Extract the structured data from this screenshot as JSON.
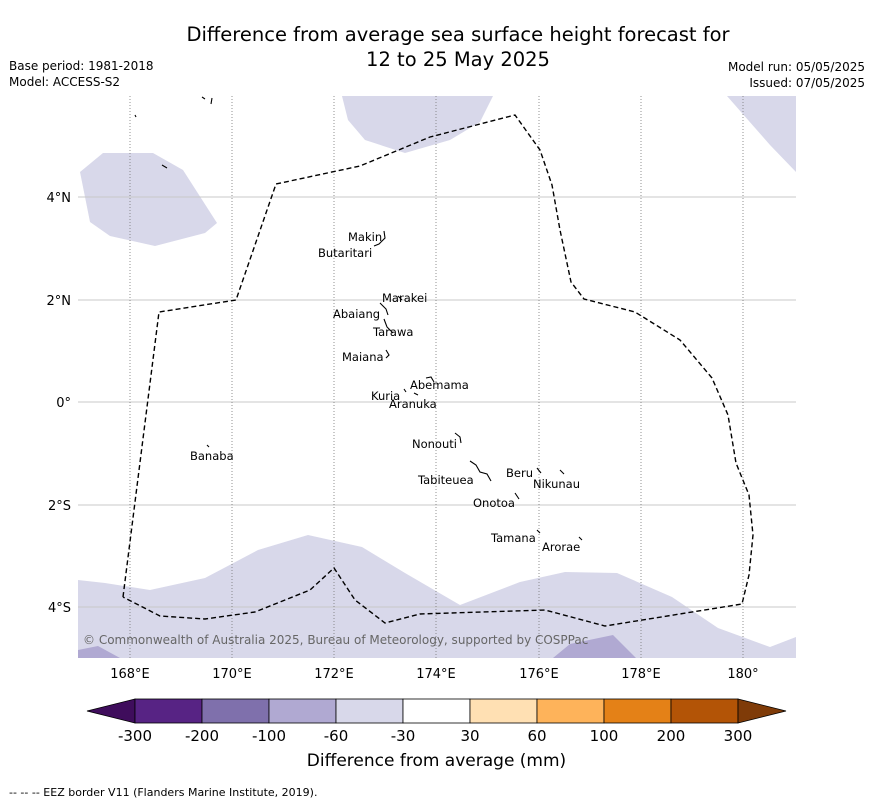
{
  "header": {
    "title_line1": "Difference from average sea surface height forecast for",
    "title_line2": "12 to 25 May 2025",
    "base_period": "Base period: 1981-2018",
    "model": "Model: ACCESS-S2",
    "model_run": "Model run: 05/05/2025",
    "issued": "Issued: 07/05/2025"
  },
  "map": {
    "lon_labels": [
      "168°E",
      "170°E",
      "172°E",
      "174°E",
      "176°E",
      "178°E",
      "180°"
    ],
    "lat_labels": [
      "4°N",
      "2°N",
      "0°",
      "2°S",
      "4°S"
    ],
    "copyright": "© Commonwealth of Australia 2025, Bureau of Meteorology, supported by COSPPac",
    "places": {
      "makin": "Makin",
      "butaritari": "Butaritari",
      "marakei": "Marakei",
      "abaiang": "Abaiang",
      "tarawa": "Tarawa",
      "maiana": "Maiana",
      "abemama": "Abemama",
      "kuria": "Kuria",
      "aranuka": "Aranuka",
      "nonouti": "Nonouti",
      "banaba": "Banaba",
      "beru": "Beru",
      "nikunau": "Nikunau",
      "tabiteuea": "Tabiteuea",
      "onotoa": "Onotoa",
      "tamana": "Tamana",
      "arorae": "Arorae"
    },
    "colors": {
      "band_-60_-30": "#d8d8ea",
      "band_-100_-60": "#b0a9d2",
      "eez_line": "#000000",
      "grid": "#c8c8c8"
    }
  },
  "colorbar": {
    "title": "Difference from average (mm)",
    "tick_labels": [
      "-300",
      "-200",
      "-100",
      "-60",
      "-30",
      "30",
      "60",
      "100",
      "200",
      "300"
    ],
    "colors": [
      "#3f0d5c",
      "#572384",
      "#7f70ac",
      "#b0a9d2",
      "#d8d8ea",
      "#ffffff",
      "#ffe0b3",
      "#feb35a",
      "#e48117",
      "#b35406",
      "#7f3b08"
    ]
  },
  "footnote": "--  --  -- EEZ border V11 (Flanders Marine Institute, 2019)."
}
